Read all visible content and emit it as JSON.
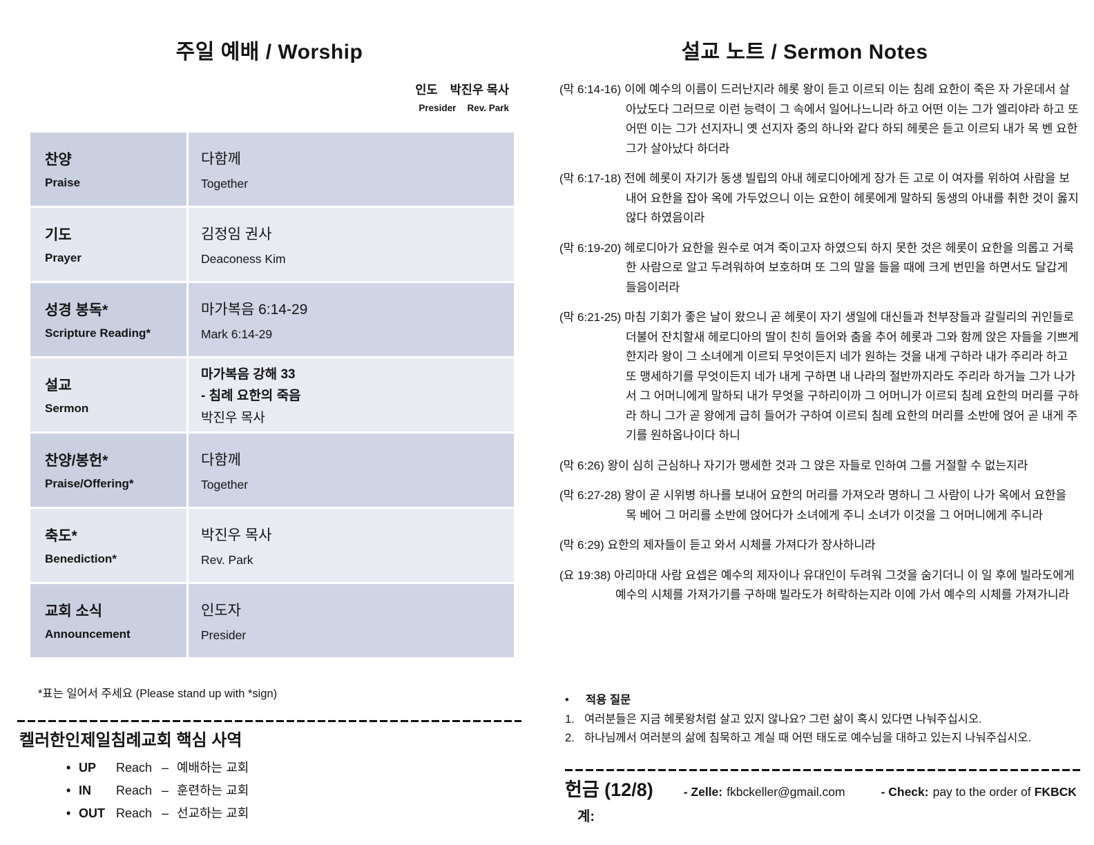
{
  "worship": {
    "title": "주일 예배 / Worship",
    "presider": {
      "ko_role": "인도",
      "ko_name": "박진우 목사",
      "en_role": "Presider",
      "en_name": "Rev. Park"
    },
    "rows": [
      {
        "ko": "찬양",
        "en": "Praise",
        "line1": "다함께",
        "line2": "Together"
      },
      {
        "ko": "기도",
        "en": "Prayer",
        "line1": "김정임 권사",
        "line2": "Deaconess Kim"
      },
      {
        "ko": "성경 봉독*",
        "en": "Scripture Reading*",
        "line1": "마가복음 6:14-29",
        "line2": "Mark 6:14-29"
      },
      {
        "ko": "설교",
        "en": "Sermon",
        "bold1": "마가복음 강해 33",
        "bold2": "- 침례 요한의 죽음",
        "line1": "박진우 목사"
      },
      {
        "ko": "찬양/봉헌*",
        "en": "Praise/Offering*",
        "line1": "다함께",
        "line2": "Together"
      },
      {
        "ko": "축도*",
        "en": "Benediction*",
        "line1": "박진우 목사",
        "line2": "Rev. Park"
      },
      {
        "ko": "교회 소식",
        "en": "Announcement",
        "line1": "인도자",
        "line2": "Presider"
      }
    ],
    "stand_note": "*표는 일어서 주세요 (Please stand up with *sign)",
    "ministry": {
      "title": "켈러한인제일침례교회 핵심 사역",
      "items": [
        {
          "bullet": "•",
          "key": "UP",
          "word": "Reach",
          "dash": "–",
          "desc": "예배하는 교회"
        },
        {
          "bullet": "•",
          "key": "IN",
          "word": "Reach",
          "dash": "–",
          "desc": "훈련하는 교회"
        },
        {
          "bullet": "•",
          "key": "OUT",
          "word": "Reach",
          "dash": "–",
          "desc": "선교하는 교회"
        }
      ]
    }
  },
  "sermon": {
    "title": "설교 노트 / Sermon Notes",
    "passages": [
      {
        "ref": "(막 6:14-16)",
        "text": "이에 예수의 이름이 드러난지라 헤롯 왕이 듣고 이르되 이는 침례 요한이 죽은 자 가운데서 살아났도다 그러므로 이런 능력이 그 속에서 일어나느니라 하고 어떤 이는 그가 엘리야라 하고 또 어떤 이는 그가 선지자니 옛 선지자 중의 하나와 같다 하되 헤롯은 듣고 이르되 내가 목 벤 요한 그가 살아났다 하더라"
      },
      {
        "ref": "(막 6:17-18)",
        "text": "전에 헤롯이 자기가 동생 빌립의 아내 헤로디아에게 장가 든 고로 이 여자를 위하여 사람을 보내어 요한을 잡아 옥에 가두었으니 이는 요한이 헤롯에게 말하되 동생의 아내를 취한 것이 옳지 않다 하였음이라"
      },
      {
        "ref": "(막 6:19-20)",
        "text": "헤로디아가 요한을 원수로 여겨 죽이고자 하였으되 하지 못한 것은 헤롯이 요한을 의롭고 거룩한 사람으로 알고 두려워하여 보호하며 또 그의 말을 들을 때에 크게 번민을 하면서도 달갑게 들음이러라"
      },
      {
        "ref": "(막 6:21-25)",
        "text": "마침 기회가 좋은 날이 왔으니 곧 헤롯이 자기 생일에 대신들과 천부장들과 갈릴리의 귀인들로 더불어 잔치할새 헤로디아의 딸이 친히 들어와 춤을 추어 헤롯과 그와 함께 앉은 자들을 기쁘게 한지라 왕이 그 소녀에게 이르되 무엇이든지 네가 원하는 것을 내게 구하라 내가 주리라 하고 또 맹세하기를 무엇이든지 네가 내게 구하면 내 나라의 절반까지라도 주리라 하거늘 그가 나가서 그 어머니에게 말하되 내가 무엇을 구하리이까 그 어머니가 이르되 침례 요한의 머리를 구하라 하니 그가 곧 왕에게 급히 들어가 구하여 이르되 침례 요한의 머리를 소반에 얹어 곧 내게 주기를 원하옵나이다 하니"
      },
      {
        "ref": "(막 6:26)",
        "text": "왕이 심히 근심하나 자기가 맹세한 것과 그 앉은 자들로 인하여 그를 거절할 수 없는지라"
      },
      {
        "ref": "(막 6:27-28)",
        "text": "왕이 곧 시위병 하나를 보내어 요한의 머리를 가져오라 명하니 그 사람이 나가 옥에서 요한을 목 베어 그 머리를 소반에 얹어다가 소녀에게 주니 소녀가 이것을 그 어머니에게 주니라"
      },
      {
        "ref": "(막 6:29)",
        "text": "요한의 제자들이 듣고 와서 시체를 가져다가 장사하니라"
      },
      {
        "ref": "(요 19:38)",
        "text": "아리마대 사람 요셉은 예수의 제자이나 유대인이 두려워 그것을 숨기더니 이 일 후에 빌라도에게 예수의 시체를 가져가기를 구하매 빌라도가 허락하는지라 이에 가서 예수의 시체를 가져가니라"
      }
    ],
    "questions": {
      "bullet": "•",
      "title": "적용 질문",
      "items": [
        {
          "num": "1.",
          "text": "여러분들은 지금 헤롯왕처럼 살고 있지 않나요? 그런 삶이 혹시 있다면 나눠주십시오."
        },
        {
          "num": "2.",
          "text": "하나님께서 여러분의 삶에 침묵하고 계실 때 어떤 태도로 예수님을 대하고 있는지 나눠주십시오."
        }
      ]
    },
    "offering": {
      "label": "헌금 (12/8)",
      "zelle_label": "- Zelle:",
      "zelle_value": "fkbckeller@gmail.com",
      "check_label": "- Check:",
      "check_value": "pay to the order of",
      "check_org": "FKBCK",
      "total_label": "계:"
    }
  }
}
